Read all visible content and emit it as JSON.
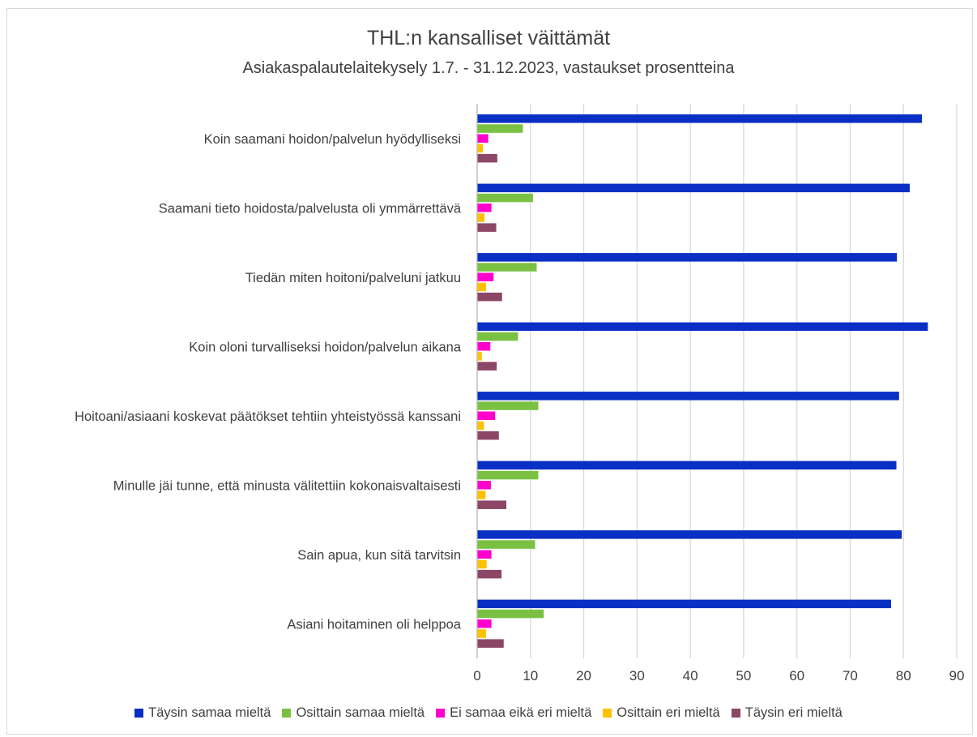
{
  "chart_data": {
    "type": "bar",
    "orientation": "horizontal",
    "title": "THL:n kansalliset väittämät",
    "subtitle": "Asiakaspalautelaitekysely 1.7. - 31.12.2023, vastaukset prosentteina",
    "categories": [
      "Koin saamani hoidon/palvelun hyödylliseksi",
      "Saamani tieto hoidosta/palvelusta oli ymmärrettävä",
      "Tiedän miten hoitoni/palveluni jatkuu",
      "Koin oloni turvalliseksi hoidon/palvelun aikana",
      "Hoitoani/asiaani koskevat päätökset tehtiin yhteistyössä kanssani",
      "Minulle jäi tunne, että minusta välitettiin kokonaisvaltaisesti",
      "Sain apua, kun sitä tarvitsin",
      "Asiani hoitaminen oli helppoa"
    ],
    "series": [
      {
        "name": "Täysin samaa mieltä",
        "color": "#0a2fc4",
        "values": [
          83.4,
          81.1,
          78.7,
          84.5,
          79.1,
          78.6,
          79.6,
          77.6
        ]
      },
      {
        "name": "Osittain samaa mieltä",
        "color": "#7ac143",
        "values": [
          8.5,
          10.4,
          11.1,
          7.6,
          11.4,
          11.4,
          10.8,
          12.4
        ]
      },
      {
        "name": "Ei samaa eikä eri mieltä",
        "color": "#ff00cc",
        "values": [
          2.0,
          2.6,
          3.0,
          2.4,
          3.3,
          2.5,
          2.6,
          2.6
        ]
      },
      {
        "name": "Osittain eri mieltä",
        "color": "#ffc000",
        "values": [
          1.0,
          1.3,
          1.6,
          0.8,
          1.2,
          1.5,
          1.7,
          1.6
        ]
      },
      {
        "name": "Täysin eri mieltä",
        "color": "#8b4765",
        "values": [
          3.7,
          3.5,
          4.6,
          3.6,
          4.0,
          5.4,
          4.5,
          4.9
        ]
      }
    ],
    "xlim": [
      0,
      90
    ],
    "xticks": [
      "0",
      "10",
      "20",
      "30",
      "40",
      "50",
      "60",
      "70",
      "80",
      "90"
    ],
    "grid": "vertical",
    "legend": "bottom"
  }
}
